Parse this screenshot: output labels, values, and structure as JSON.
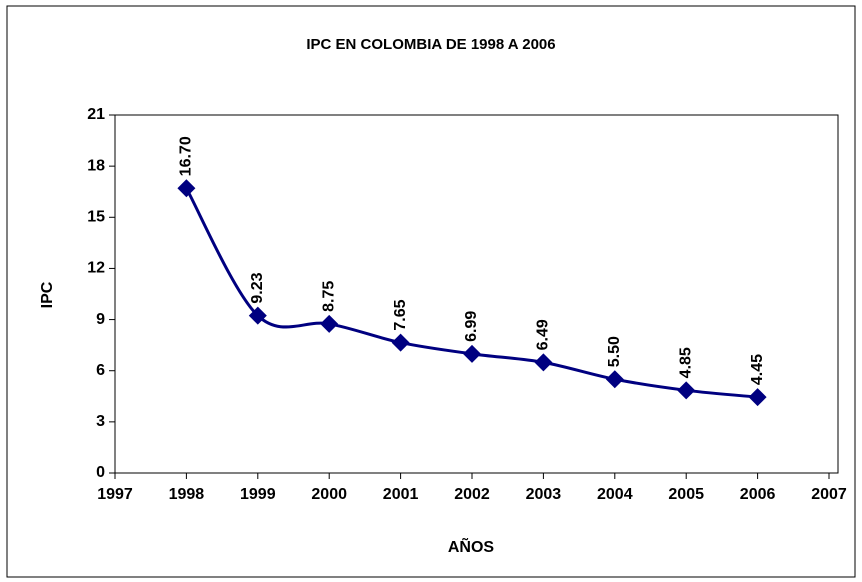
{
  "chart_data": {
    "type": "line",
    "title": "IPC EN COLOMBIA DE 1998 A 2006",
    "x_label": "AÑOS",
    "y_label": "IPC",
    "x": [
      1998,
      1999,
      2000,
      2001,
      2002,
      2003,
      2004,
      2005,
      2006
    ],
    "series": [
      {
        "name": "IPC",
        "color": "#000080",
        "values": [
          16.7,
          9.23,
          8.75,
          7.65,
          6.99,
          6.49,
          5.5,
          4.85,
          4.45
        ],
        "value_labels": [
          "16.70",
          "9.23",
          "8.75",
          "7.65",
          "6.99",
          "6.49",
          "5.50",
          "4.85",
          "4.45"
        ]
      }
    ],
    "xlim": [
      1997,
      2007
    ],
    "xticks": [
      1997,
      1998,
      1999,
      2000,
      2001,
      2002,
      2003,
      2004,
      2005,
      2006,
      2007
    ],
    "ylim": [
      0,
      21
    ],
    "yticks": [
      0,
      3,
      6,
      9,
      12,
      15,
      18,
      21
    ],
    "smooth": true
  }
}
